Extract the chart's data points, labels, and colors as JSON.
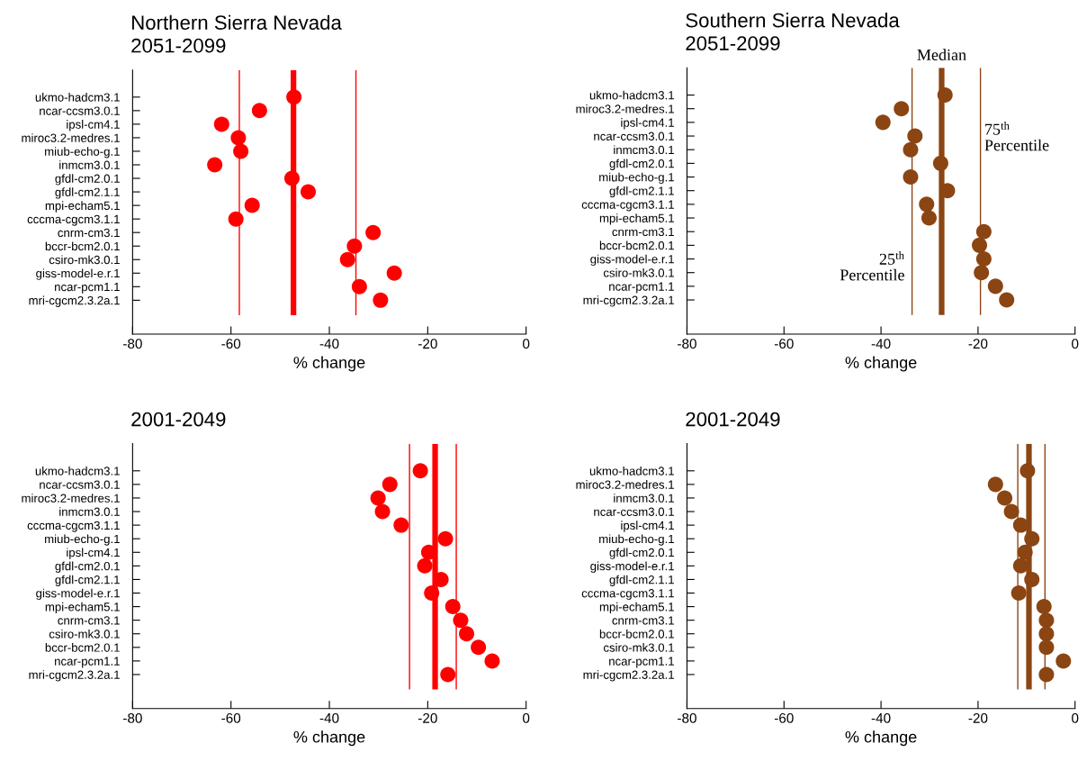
{
  "chart_data": [
    {
      "type": "scatter",
      "title": "Northern Sierra Nevada\n2051-2099",
      "xlabel": "% change",
      "orientation": "horizontal",
      "categories": [
        "ukmo-hadcm3.1",
        "ncar-ccsm3.0.1",
        "ipsl-cm4.1",
        "miroc3.2-medres.1",
        "miub-echo-g.1",
        "inmcm3.0.1",
        "gfdl-cm2.0.1",
        "gfdl-cm2.1.1",
        "mpi-echam5.1",
        "cccma-cgcm3.1.1",
        "cnrm-cm3.1",
        "bccr-bcm2.0.1",
        "csiro-mk3.0.1",
        "giss-model-e.r.1",
        "ncar-pcm1.1",
        "mri-cgcm2.3.2a.1"
      ],
      "series": [
        {
          "color": "#ff0000",
          "values": [
            -47.2,
            -54.2,
            -61.9,
            -58.5,
            -58.0,
            -63.3,
            -47.6,
            -44.3,
            -55.7,
            -59.0,
            -31.1,
            -34.9,
            -36.3,
            -26.8,
            -33.9,
            -29.6
          ]
        }
      ],
      "ref_lines": [
        {
          "axis": "x",
          "value": -58.3,
          "color": "#ff0000"
        },
        {
          "axis": "x",
          "value": -47.3,
          "color": "#ff0000"
        },
        {
          "axis": "x",
          "value": -34.6,
          "color": "#ff0000"
        }
      ],
      "xlim": [
        -80,
        0
      ],
      "xticks": [
        -80,
        -60,
        -40,
        -20,
        0
      ],
      "marker": "circle",
      "grid": false
    },
    {
      "type": "scatter",
      "title": "Southern Sierra Nevada\n2051-2099",
      "xlabel": "% change",
      "orientation": "horizontal",
      "categories": [
        "ukmo-hadcm3.1",
        "miroc3.2-medres.1",
        "ipsl-cm4.1",
        "ncar-ccsm3.0.1",
        "inmcm3.0.1",
        "gfdl-cm2.0.1",
        "miub-echo-g.1",
        "gfdl-cm2.1.1",
        "cccma-cgcm3.1.1",
        "mpi-echam5.1",
        "cnrm-cm3.1",
        "bccr-bcm2.0.1",
        "giss-model-e.r.1",
        "csiro-mk3.0.1",
        "ncar-pcm1.1",
        "mri-cgcm2.3.2a.1"
      ],
      "series": [
        {
          "color": "#8b4513",
          "values": [
            -26.8,
            -35.8,
            -39.6,
            -33.0,
            -33.9,
            -27.7,
            -33.9,
            -26.3,
            -30.6,
            -30.1,
            -18.8,
            -19.7,
            -18.8,
            -19.3,
            -16.4,
            -14.1
          ]
        }
      ],
      "ref_lines": [
        {
          "axis": "x",
          "value": -33.6,
          "label": "25$^{th}$\nPercentile",
          "color": "#8b4513"
        },
        {
          "axis": "x",
          "value": -27.5,
          "label": "Median",
          "color": "#8b4513"
        },
        {
          "axis": "x",
          "value": -19.5,
          "label": "75$^{th}$\nPercentile",
          "color": "#8b4513"
        }
      ],
      "xlim": [
        -80,
        0
      ],
      "xticks": [
        -80,
        -60,
        -40,
        -20,
        0
      ],
      "marker": "circle",
      "grid": false
    },
    {
      "type": "scatter",
      "title": "2001-2049",
      "xlabel": "% change",
      "orientation": "horizontal",
      "categories": [
        "ukmo-hadcm3.1",
        "ncar-ccsm3.0.1",
        "miroc3.2-medres.1",
        "inmcm3.0.1",
        "cccma-cgcm3.1.1",
        "miub-echo-g.1",
        "ipsl-cm4.1",
        "gfdl-cm2.0.1",
        "gfdl-cm2.1.1",
        "giss-model-e.r.1",
        "mpi-echam5.1",
        "cnrm-cm3.1",
        "csiro-mk3.0.1",
        "bccr-bcm2.0.1",
        "ncar-pcm1.1",
        "mri-cgcm2.3.2a.1"
      ],
      "series": [
        {
          "color": "#ff0000",
          "values": [
            -21.5,
            -27.7,
            -30.1,
            -29.2,
            -25.4,
            -16.4,
            -19.8,
            -20.6,
            -17.3,
            -19.2,
            -14.9,
            -13.3,
            -12.1,
            -9.7,
            -6.9,
            -15.9
          ]
        }
      ],
      "ref_lines": [
        {
          "axis": "x",
          "value": -23.7,
          "color": "#ff0000"
        },
        {
          "axis": "x",
          "value": -18.5,
          "color": "#ff0000"
        },
        {
          "axis": "x",
          "value": -14.2,
          "color": "#ff0000"
        }
      ],
      "xlim": [
        -80,
        0
      ],
      "xticks": [
        -80,
        -60,
        -40,
        -20,
        0
      ],
      "marker": "circle",
      "grid": false
    },
    {
      "type": "scatter",
      "title": "2001-2049",
      "xlabel": "% change",
      "orientation": "horizontal",
      "categories": [
        "ukmo-hadcm3.1",
        "miroc3.2-medres.1",
        "inmcm3.0.1",
        "ncar-ccsm3.0.1",
        "ipsl-cm4.1",
        "miub-echo-g.1",
        "gfdl-cm2.0.1",
        "giss-model-e.r.1",
        "gfdl-cm2.1.1",
        "cccma-cgcm3.1.1",
        "mpi-echam5.1",
        "cnrm-cm3.1",
        "bccr-bcm2.0.1",
        "csiro-mk3.0.1",
        "ncar-pcm1.1",
        "mri-cgcm2.3.2a.1"
      ],
      "series": [
        {
          "color": "#8b4513",
          "values": [
            -9.8,
            -16.4,
            -14.5,
            -13.1,
            -11.2,
            -8.9,
            -10.3,
            -11.2,
            -8.9,
            -11.6,
            -6.4,
            -5.9,
            -5.9,
            -5.9,
            -2.4,
            -5.9
          ]
        }
      ],
      "ref_lines": [
        {
          "axis": "x",
          "value": -11.8,
          "color": "#8b4513"
        },
        {
          "axis": "x",
          "value": -9.5,
          "color": "#8b4513"
        },
        {
          "axis": "x",
          "value": -6.2,
          "color": "#8b4513"
        }
      ],
      "xlim": [
        -80,
        0
      ],
      "xticks": [
        -80,
        -60,
        -40,
        -20,
        0
      ],
      "marker": "circle",
      "grid": false
    }
  ]
}
